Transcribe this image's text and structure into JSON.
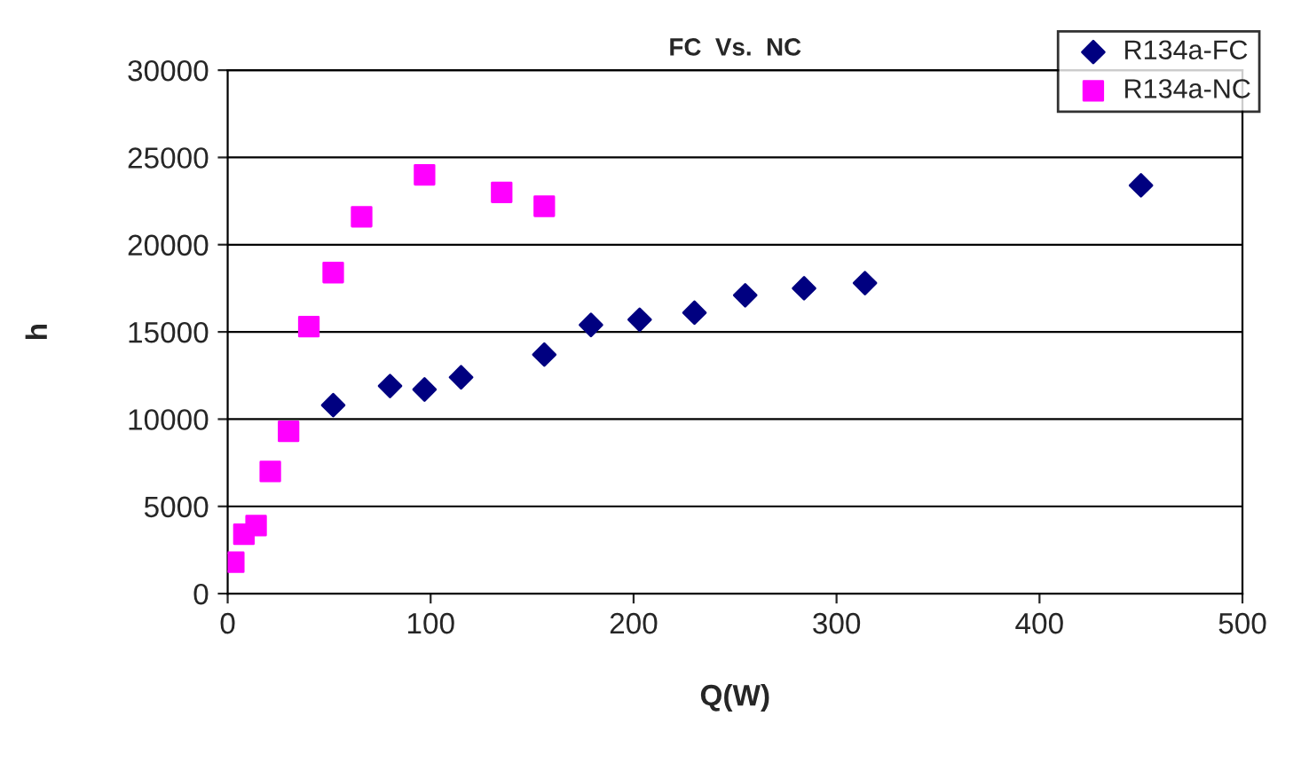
{
  "chart_data": {
    "type": "scatter",
    "title": "FC  Vs.  NC",
    "xlabel": "Q(W)",
    "ylabel": "h",
    "xlim": [
      0,
      500
    ],
    "xticks": [
      0,
      100,
      200,
      300,
      400,
      500
    ],
    "ylim": [
      0,
      30000
    ],
    "yticks": [
      0,
      5000,
      10000,
      15000,
      20000,
      25000,
      30000
    ],
    "grid": "y",
    "legend": "top right",
    "series": [
      {
        "name": "R134a-FC",
        "color": "#000080",
        "marker": "diamond",
        "x": [
          52,
          80,
          97,
          115,
          156,
          179,
          203,
          230,
          255,
          284,
          314,
          450
        ],
        "values": [
          10800,
          11900,
          11700,
          12400,
          13700,
          15400,
          15700,
          16100,
          17100,
          17500,
          17800,
          23400
        ]
      },
      {
        "name": "R134a-NC",
        "color": "#ff00ff",
        "marker": "square",
        "x": [
          3,
          8,
          14,
          21,
          30,
          40,
          52,
          66,
          97,
          135,
          156
        ],
        "values": [
          1800,
          3400,
          3900,
          7000,
          9300,
          15300,
          18400,
          21600,
          24000,
          23000,
          22200
        ]
      }
    ]
  }
}
